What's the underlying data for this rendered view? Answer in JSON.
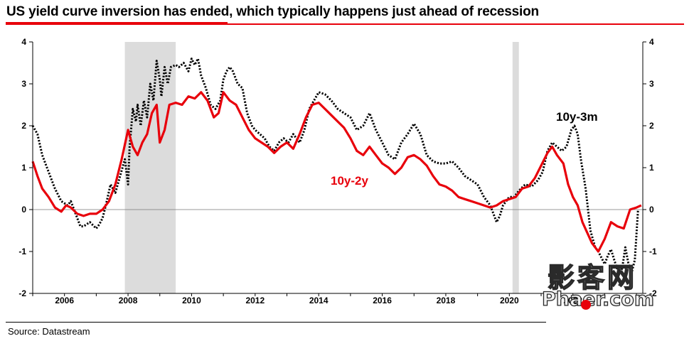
{
  "header": {
    "title": "US yield curve inversion has ended, which typically happens just ahead of recession"
  },
  "footer": {
    "source": "Source: Datastream"
  },
  "watermark": {
    "cn": "影客网",
    "en": "Phaer.com"
  },
  "colors": {
    "accent": "#e8000b",
    "series_10y2y": "#e8000b",
    "series_10y3m": "#000000",
    "recession_shade": "#dcdcdc"
  },
  "chart_data": {
    "type": "line",
    "title": "US yield curve inversion has ended, which typically happens just ahead of recession",
    "xlim": [
      2005.0,
      2024.2
    ],
    "ylim": [
      -2,
      4
    ],
    "x_ticks": [
      2006,
      2008,
      2010,
      2012,
      2014,
      2016,
      2018,
      2020,
      2022
    ],
    "x_tick_labels": [
      "2006",
      "2008",
      "2010",
      "2012",
      "2014",
      "2016",
      "2018",
      "2020",
      "2022"
    ],
    "y_ticks": [
      -2,
      -1,
      0,
      1,
      2,
      3,
      4
    ],
    "y_tick_labels": [
      "-2",
      "-1",
      "0",
      "1",
      "2",
      "3",
      "4"
    ],
    "zero_line": true,
    "grid": false,
    "recessions": [
      [
        2007.9,
        2009.5
      ],
      [
        2020.1,
        2020.3
      ]
    ],
    "series": [
      {
        "name": "10y-3m",
        "label": "10y-3m",
        "style": "dotted",
        "color": "#000000",
        "x": [
          2005.0,
          2005.15,
          2005.3,
          2005.5,
          2005.7,
          2005.9,
          2006.1,
          2006.2,
          2006.4,
          2006.5,
          2006.6,
          2006.8,
          2007.0,
          2007.1,
          2007.2,
          2007.3,
          2007.45,
          2007.6,
          2007.75,
          2007.9,
          2008.0,
          2008.05,
          2008.15,
          2008.25,
          2008.3,
          2008.4,
          2008.5,
          2008.6,
          2008.7,
          2008.8,
          2008.9,
          2009.0,
          2009.05,
          2009.15,
          2009.25,
          2009.35,
          2009.5,
          2009.6,
          2009.75,
          2009.9,
          2010.0,
          2010.1,
          2010.2,
          2010.3,
          2010.45,
          2010.6,
          2010.75,
          2010.9,
          2011.0,
          2011.1,
          2011.2,
          2011.3,
          2011.45,
          2011.6,
          2011.75,
          2011.9,
          2012.0,
          2012.15,
          2012.3,
          2012.45,
          2012.6,
          2012.75,
          2012.9,
          2013.05,
          2013.2,
          2013.4,
          2013.55,
          2013.7,
          2013.85,
          2014.0,
          2014.2,
          2014.4,
          2014.6,
          2014.8,
          2015.0,
          2015.2,
          2015.4,
          2015.6,
          2015.8,
          2016.0,
          2016.2,
          2016.4,
          2016.6,
          2016.8,
          2017.0,
          2017.2,
          2017.4,
          2017.6,
          2017.8,
          2018.0,
          2018.2,
          2018.4,
          2018.6,
          2018.8,
          2019.0,
          2019.2,
          2019.4,
          2019.6,
          2019.7,
          2019.8,
          2020.0,
          2020.15,
          2020.3,
          2020.5,
          2020.7,
          2020.9,
          2021.05,
          2021.2,
          2021.35,
          2021.5,
          2021.65,
          2021.8,
          2021.95,
          2022.05,
          2022.15,
          2022.25,
          2022.4,
          2022.55,
          2022.7,
          2022.8,
          2022.9,
          2023.0,
          2023.1,
          2023.2,
          2023.3,
          2023.45,
          2023.55,
          2023.65,
          2023.75,
          2023.85,
          2023.95,
          2024.05
        ],
        "values": [
          2.0,
          1.8,
          1.3,
          0.9,
          0.5,
          0.2,
          0.1,
          0.2,
          -0.2,
          -0.4,
          -0.4,
          -0.3,
          -0.45,
          -0.35,
          -0.2,
          0.1,
          0.6,
          0.4,
          0.8,
          1.2,
          0.6,
          1.5,
          2.4,
          2.1,
          2.5,
          2.0,
          2.6,
          2.2,
          3.0,
          2.6,
          3.55,
          3.1,
          2.7,
          3.4,
          3.0,
          3.4,
          3.45,
          3.4,
          3.5,
          3.3,
          3.6,
          3.45,
          3.6,
          3.2,
          2.9,
          2.5,
          2.4,
          2.6,
          3.1,
          3.3,
          3.4,
          3.3,
          3.0,
          2.9,
          2.3,
          2.0,
          1.9,
          1.8,
          1.7,
          1.5,
          1.4,
          1.6,
          1.7,
          1.6,
          1.8,
          1.6,
          1.9,
          2.4,
          2.6,
          2.8,
          2.75,
          2.6,
          2.4,
          2.3,
          2.2,
          1.9,
          2.0,
          2.3,
          1.9,
          1.6,
          1.3,
          1.2,
          1.6,
          1.8,
          2.05,
          1.8,
          1.3,
          1.15,
          1.1,
          1.1,
          1.15,
          1.0,
          0.8,
          0.7,
          0.6,
          0.3,
          0.1,
          -0.3,
          -0.15,
          0.1,
          0.3,
          0.3,
          0.45,
          0.6,
          0.55,
          0.7,
          0.9,
          1.4,
          1.6,
          1.5,
          1.4,
          1.5,
          1.9,
          2.0,
          1.8,
          1.2,
          0.5,
          -0.5,
          -0.9,
          -1.0,
          -1.15,
          -1.3,
          -1.1,
          -0.95,
          -1.2,
          -1.55,
          -1.4,
          -0.9,
          -1.3,
          -1.5,
          -1.2,
          0.0
        ]
      },
      {
        "name": "10y-2y",
        "label": "10y-2y",
        "style": "solid",
        "color": "#e8000b",
        "x": [
          2005.0,
          2005.15,
          2005.3,
          2005.5,
          2005.7,
          2005.9,
          2006.05,
          2006.2,
          2006.4,
          2006.6,
          2006.8,
          2007.0,
          2007.2,
          2007.4,
          2007.6,
          2007.8,
          2008.0,
          2008.15,
          2008.3,
          2008.45,
          2008.6,
          2008.75,
          2008.9,
          2009.0,
          2009.15,
          2009.3,
          2009.5,
          2009.7,
          2009.9,
          2010.1,
          2010.3,
          2010.5,
          2010.7,
          2010.85,
          2011.0,
          2011.2,
          2011.4,
          2011.6,
          2011.8,
          2012.0,
          2012.2,
          2012.4,
          2012.6,
          2012.8,
          2013.0,
          2013.2,
          2013.4,
          2013.6,
          2013.8,
          2014.0,
          2014.2,
          2014.4,
          2014.6,
          2014.8,
          2015.0,
          2015.2,
          2015.4,
          2015.6,
          2015.8,
          2016.0,
          2016.2,
          2016.4,
          2016.6,
          2016.8,
          2017.0,
          2017.2,
          2017.4,
          2017.6,
          2017.8,
          2018.0,
          2018.2,
          2018.4,
          2018.6,
          2018.8,
          2019.0,
          2019.2,
          2019.4,
          2019.6,
          2019.8,
          2020.0,
          2020.2,
          2020.4,
          2020.6,
          2020.8,
          2021.0,
          2021.2,
          2021.35,
          2021.5,
          2021.7,
          2021.85,
          2022.0,
          2022.15,
          2022.3,
          2022.45,
          2022.6,
          2022.8,
          2023.0,
          2023.2,
          2023.4,
          2023.6,
          2023.8,
          2024.0,
          2024.15
        ],
        "values": [
          1.15,
          0.8,
          0.5,
          0.3,
          0.05,
          -0.05,
          0.1,
          0.05,
          -0.1,
          -0.15,
          -0.1,
          -0.1,
          0.0,
          0.2,
          0.6,
          1.2,
          1.9,
          1.5,
          1.3,
          1.6,
          1.8,
          2.3,
          2.5,
          1.6,
          1.9,
          2.5,
          2.55,
          2.5,
          2.7,
          2.65,
          2.8,
          2.6,
          2.2,
          2.3,
          2.8,
          2.6,
          2.5,
          2.2,
          1.9,
          1.7,
          1.6,
          1.5,
          1.35,
          1.5,
          1.6,
          1.45,
          1.8,
          2.2,
          2.5,
          2.55,
          2.4,
          2.25,
          2.1,
          1.95,
          1.7,
          1.4,
          1.3,
          1.5,
          1.3,
          1.1,
          1.0,
          0.85,
          1.0,
          1.25,
          1.3,
          1.2,
          1.05,
          0.8,
          0.6,
          0.55,
          0.45,
          0.3,
          0.25,
          0.2,
          0.15,
          0.1,
          0.05,
          0.1,
          0.2,
          0.25,
          0.3,
          0.5,
          0.55,
          0.75,
          1.05,
          1.35,
          1.5,
          1.3,
          1.1,
          0.6,
          0.3,
          0.1,
          -0.3,
          -0.55,
          -0.8,
          -1.0,
          -0.7,
          -0.3,
          -0.4,
          -0.45,
          0.0,
          0.05,
          0.1
        ]
      }
    ],
    "annotations": [
      {
        "text": "10y-3m",
        "color": "#000000"
      },
      {
        "text": "10y-2y",
        "color": "#e8000b"
      }
    ]
  }
}
